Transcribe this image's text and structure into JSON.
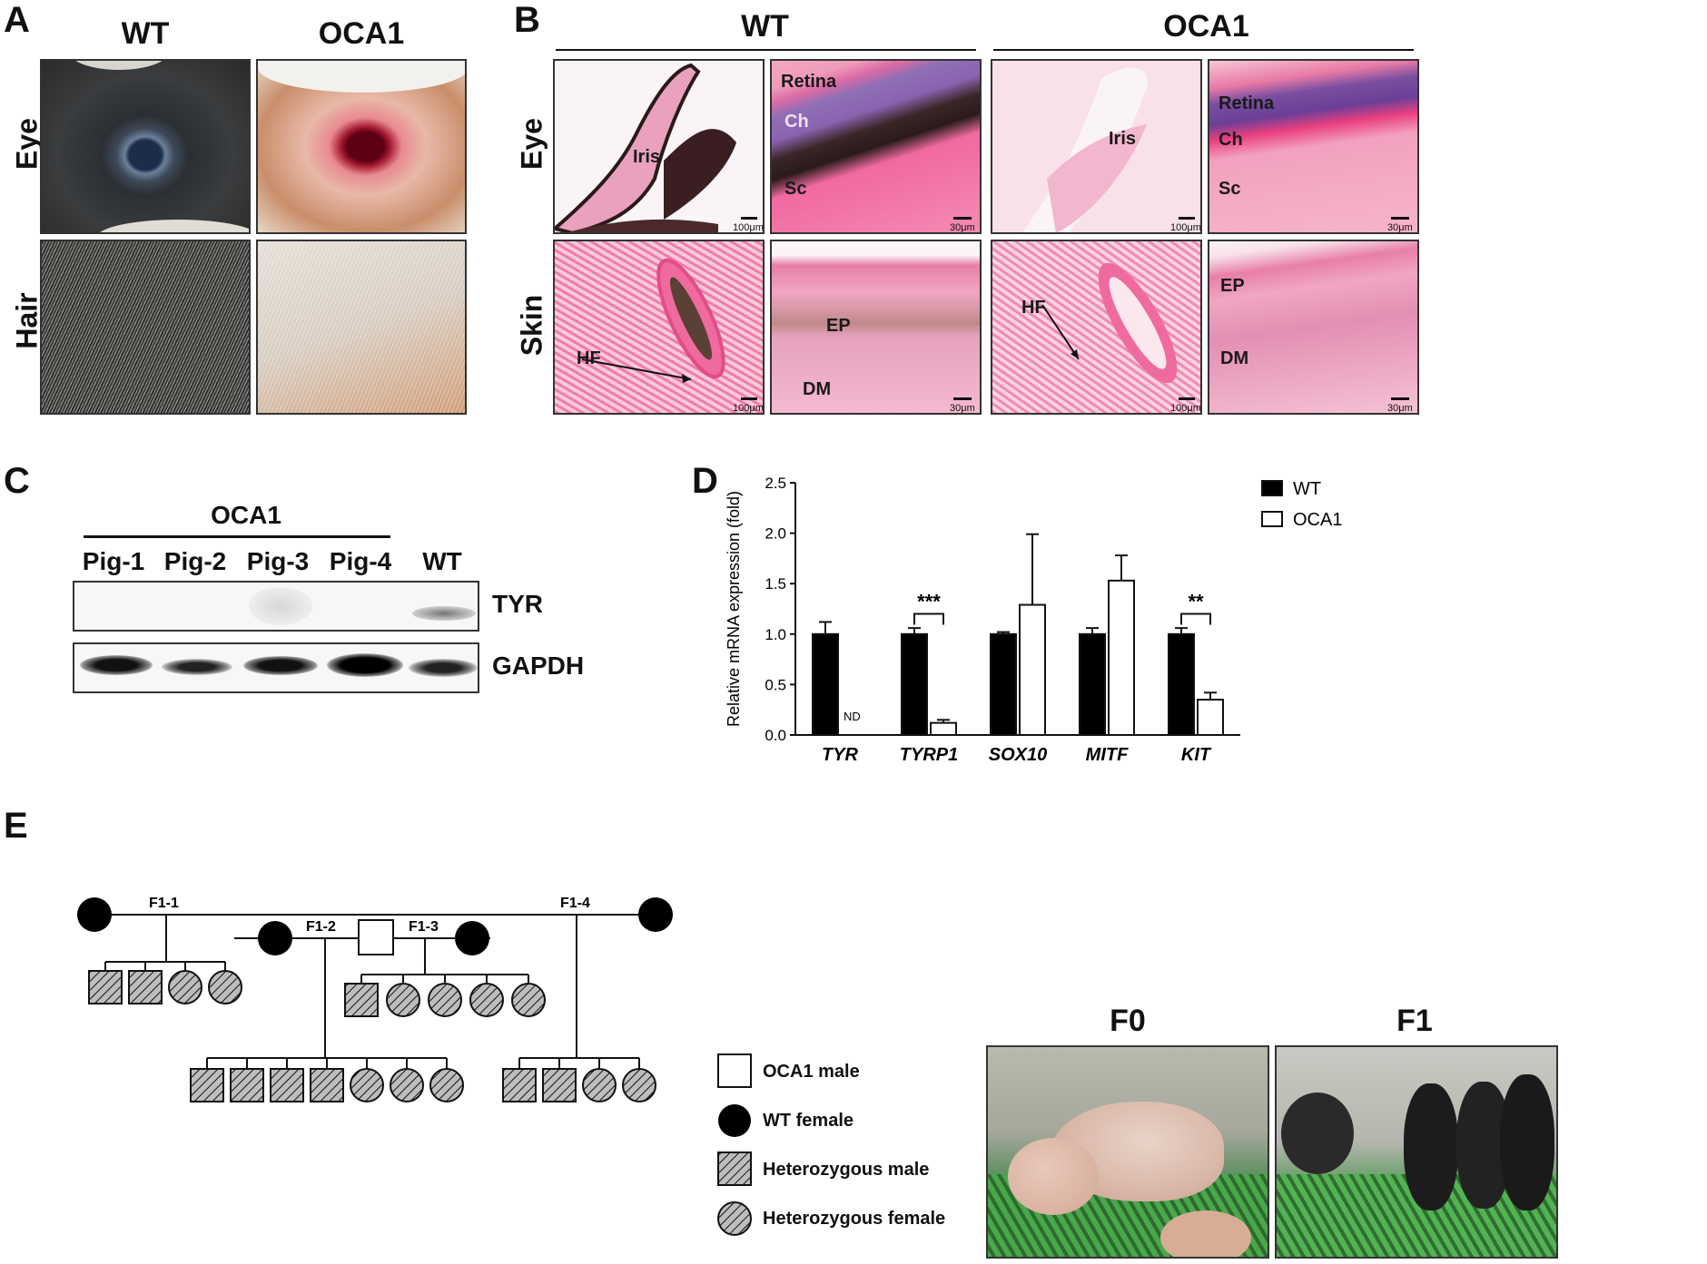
{
  "panels": {
    "A": "A",
    "B": "B",
    "C": "C",
    "D": "D",
    "E": "E"
  },
  "panelA": {
    "col_headers": [
      "WT",
      "OCA1"
    ],
    "row_labels": [
      "Eye",
      "Hair"
    ]
  },
  "panelB": {
    "group_headers": [
      "WT",
      "OCA1"
    ],
    "row_labels": [
      "Eye",
      "Skin"
    ],
    "tiles": [
      {
        "labels": [
          "Iris"
        ],
        "scale": "100μm"
      },
      {
        "labels": [
          "Retina",
          "Ch",
          "Sc"
        ],
        "scale": "30μm"
      },
      {
        "labels": [
          "Iris"
        ],
        "scale": "100μm"
      },
      {
        "labels": [
          "Retina",
          "Ch",
          "Sc"
        ],
        "scale": "30μm"
      },
      {
        "labels": [
          "HF"
        ],
        "scale": "100μm"
      },
      {
        "labels": [
          "EP",
          "DM"
        ],
        "scale": "30μm"
      },
      {
        "labels": [
          "HF"
        ],
        "scale": "100μm"
      },
      {
        "labels": [
          "EP",
          "DM"
        ],
        "scale": "30μm"
      }
    ]
  },
  "panelC": {
    "group_label": "OCA1",
    "lanes": [
      "Pig-1",
      "Pig-2",
      "Pig-3",
      "Pig-4",
      "WT"
    ],
    "bands": [
      "TYR",
      "GAPDH"
    ]
  },
  "chart_data": {
    "type": "bar",
    "ylabel": "Relative mRNA expression (fold)",
    "xlabel": "",
    "ylim": [
      0,
      2.5
    ],
    "yticks": [
      "0.0",
      "0.5",
      "1.0",
      "1.5",
      "2.0",
      "2.5"
    ],
    "categories": [
      "TYR",
      "TYRP1",
      "SOX10",
      "MITF",
      "KIT"
    ],
    "series": [
      {
        "name": "WT",
        "values": [
          1.0,
          1.0,
          1.0,
          1.0,
          1.0
        ],
        "errors": [
          0.12,
          0.06,
          0.02,
          0.06,
          0.06
        ],
        "color": "#000000"
      },
      {
        "name": "OCA1",
        "values": [
          0.0,
          0.12,
          1.29,
          1.53,
          0.35
        ],
        "errors": [
          0,
          0.03,
          0.7,
          0.25,
          0.07
        ],
        "color": "#ffffff"
      }
    ],
    "annotations": [
      {
        "category": "TYR",
        "series": "OCA1",
        "text": "ND"
      },
      {
        "category": "TYRP1",
        "text": "***"
      },
      {
        "category": "KIT",
        "text": "**"
      }
    ],
    "legend_position": "top-right",
    "grid": false
  },
  "panelE": {
    "pedigree_labels": [
      "F1-1",
      "F1-2",
      "F1-3",
      "F1-4"
    ],
    "legend": [
      "OCA1 male",
      "WT female",
      "Heterozygous male",
      "Heterozygous female"
    ],
    "photo_headers": [
      "F0",
      "F1"
    ]
  }
}
